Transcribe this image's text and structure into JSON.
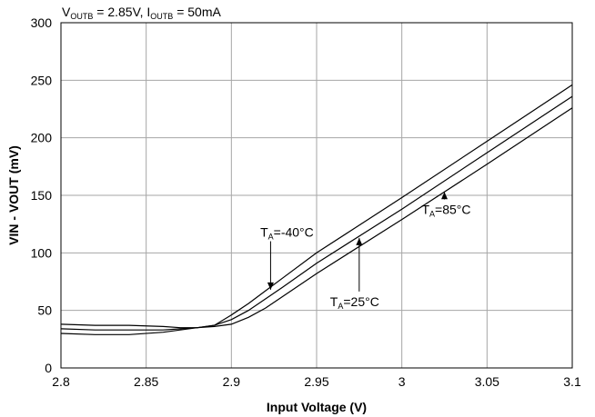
{
  "chart_data": {
    "type": "line",
    "title": "",
    "condition": {
      "v_symbol": "V",
      "v_subscript": "OUTB",
      "v_value": " = 2.85V, ",
      "i_symbol": "I",
      "i_subscript": "OUTB",
      "i_value": " = 50mA"
    },
    "xlabel": "Input Voltage (V)",
    "ylabel": "VIN - VOUT (mV)",
    "xlim": [
      2.8,
      3.1
    ],
    "ylim": [
      0,
      300
    ],
    "x_ticks": [
      "2.8",
      "2.85",
      "2.9",
      "2.95",
      "3",
      "3.05",
      "3.1"
    ],
    "y_ticks": [
      "0",
      "50",
      "100",
      "150",
      "200",
      "250",
      "300"
    ],
    "grid": true,
    "legend": "none",
    "series": [
      {
        "name": "TA=-40°C",
        "x": [
          2.8,
          2.82,
          2.84,
          2.86,
          2.87,
          2.88,
          2.89,
          2.9,
          2.91,
          2.92,
          2.93,
          2.95,
          3.0,
          3.05,
          3.1
        ],
        "y": [
          38,
          37,
          37,
          36,
          35,
          35,
          37,
          46,
          56,
          67,
          78,
          100,
          148,
          197,
          246
        ]
      },
      {
        "name": "TA=25°C",
        "x": [
          2.8,
          2.82,
          2.84,
          2.86,
          2.87,
          2.88,
          2.89,
          2.9,
          2.91,
          2.92,
          2.93,
          2.95,
          3.0,
          3.05,
          3.1
        ],
        "y": [
          34,
          33,
          33,
          33,
          34,
          35,
          37,
          42,
          50,
          60,
          70,
          91,
          138,
          187,
          236
        ]
      },
      {
        "name": "TA=85°C",
        "x": [
          2.8,
          2.82,
          2.84,
          2.86,
          2.87,
          2.88,
          2.89,
          2.9,
          2.91,
          2.92,
          2.93,
          2.95,
          3.0,
          3.05,
          3.1
        ],
        "y": [
          30,
          29,
          29,
          31,
          33,
          35,
          36,
          38,
          44,
          52,
          62,
          82,
          129,
          177,
          226
        ]
      }
    ],
    "annotations": [
      {
        "series": 0,
        "prefix": "T",
        "subscript": "A",
        "text": "=-40°C",
        "x": 2.923,
        "y": 118,
        "arrow_to": [
          2.923,
          68
        ]
      },
      {
        "series": 1,
        "prefix": "T",
        "subscript": "A",
        "text": "=25°C",
        "x": 2.975,
        "y": 68,
        "arrow_to": [
          2.975,
          113
        ]
      },
      {
        "series": 2,
        "prefix": "T",
        "subscript": "A",
        "text": "=85°C",
        "x": 3.025,
        "y": 148,
        "arrow_to": [
          3.025,
          153
        ]
      }
    ]
  }
}
